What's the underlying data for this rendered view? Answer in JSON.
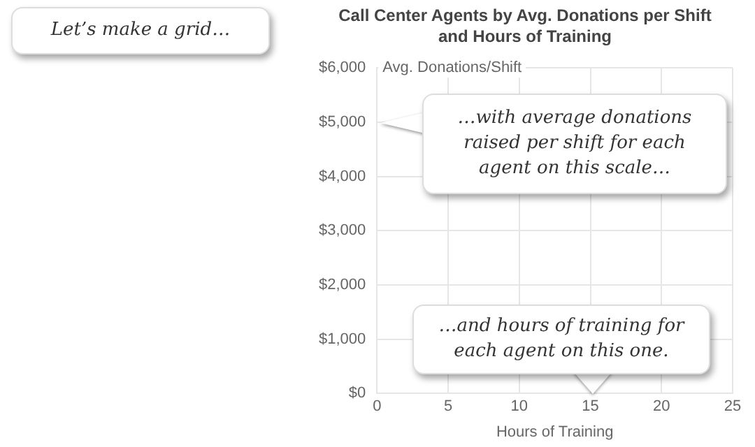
{
  "chart_data": {
    "type": "scatter",
    "title": "Call Center Agents by Avg. Donations per Shift and Hours of Training",
    "xlabel": "Hours of Training",
    "ylabel": "Avg. Donations/Shift",
    "xlim": [
      0,
      25
    ],
    "xticks": [
      0,
      5,
      10,
      15,
      20,
      25
    ],
    "ylim": [
      0,
      6000
    ],
    "yticks": [
      {
        "value": 0,
        "label": "$0"
      },
      {
        "value": 1000,
        "label": "$1,000"
      },
      {
        "value": 2000,
        "label": "$2,000"
      },
      {
        "value": 3000,
        "label": "$3,000"
      },
      {
        "value": 4000,
        "label": "$4,000"
      },
      {
        "value": 5000,
        "label": "$5,000"
      },
      {
        "value": 6000,
        "label": "$6,000"
      }
    ],
    "grid": true,
    "annotations": [
      "Let’s make a grid…",
      "…with average donations raised per shift for each agent on this scale…",
      "…and hours of training for each agent on this one."
    ]
  }
}
